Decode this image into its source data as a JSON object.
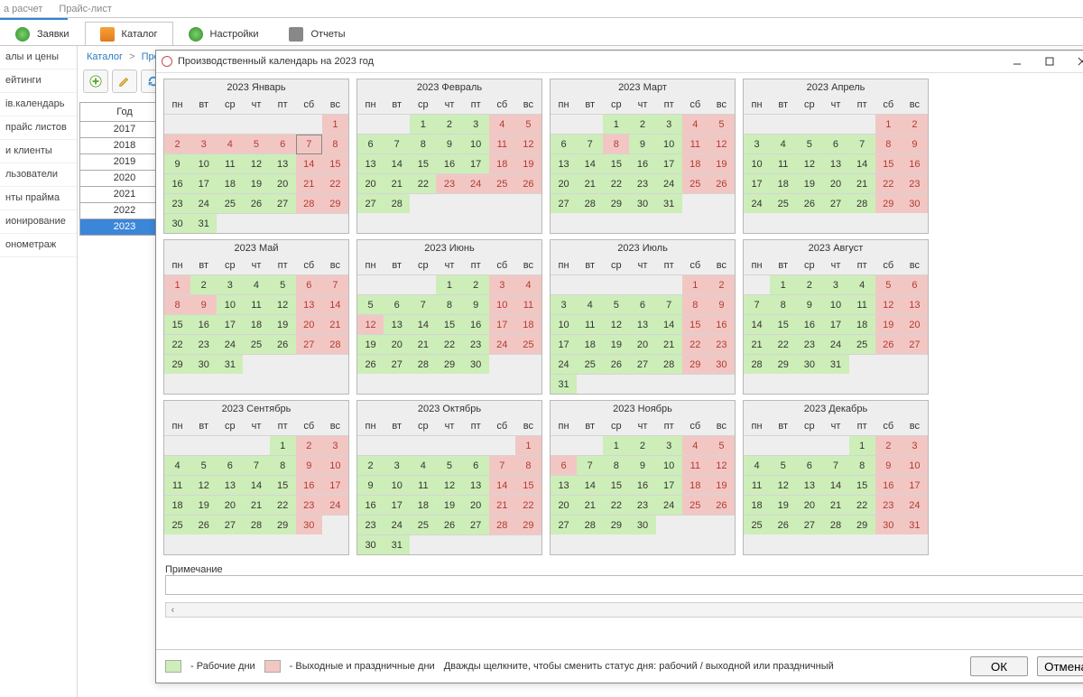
{
  "topTabs": [
    "а расчет",
    "Прайс-лист"
  ],
  "mainTabs": [
    {
      "icon": "request",
      "label": "Заявки"
    },
    {
      "icon": "catalog",
      "label": "Каталог"
    },
    {
      "icon": "settings",
      "label": "Настройки"
    },
    {
      "icon": "reports",
      "label": "Отчеты"
    }
  ],
  "activeMainTab": 1,
  "sidebar": [
    "алы и цены",
    "ейтинги",
    "ів.календарь",
    "прайс листов",
    "и клиенты",
    "льзователи",
    "нты прайма",
    "ионирование",
    "онометраж"
  ],
  "breadcrumb": [
    "Каталог",
    "Производственный календарь"
  ],
  "yearHeader": "Год",
  "years": [
    "2017",
    "2018",
    "2019",
    "2020",
    "2021",
    "2022",
    "2023"
  ],
  "selectedYear": "2023",
  "dialogTitle": "Производственный календарь на 2023 год",
  "dow": [
    "пн",
    "вт",
    "ср",
    "чт",
    "пт",
    "сб",
    "вс"
  ],
  "noteLabel": "Примечание",
  "legendWork": " - Рабочие дни",
  "legendHoliday": " - Выходные и праздничные дни",
  "hint": "Дважды щелкните, чтобы сменить статус дня: рабочий / выходной или праздничный",
  "okLabel": "ОК",
  "cancelLabel": "Отмена",
  "colors": {
    "work": "#cdeeb8",
    "holiday": "#f2c7c3",
    "grid": "#b9b9b9",
    "empty": "#eeeeee"
  },
  "today": {
    "month": 0,
    "day": 7
  },
  "months": [
    {
      "title": "2023 Январь",
      "startDow": 6,
      "days": 31,
      "holidays": [
        1,
        2,
        3,
        4,
        5,
        6,
        7,
        8,
        14,
        15,
        21,
        22,
        28,
        29
      ],
      "rows": 6
    },
    {
      "title": "2023 Февраль",
      "startDow": 2,
      "days": 28,
      "holidays": [
        4,
        5,
        11,
        12,
        18,
        19,
        23,
        24,
        25,
        26
      ],
      "rows": 6
    },
    {
      "title": "2023 Март",
      "startDow": 2,
      "days": 31,
      "holidays": [
        4,
        5,
        8,
        11,
        12,
        18,
        19,
        25,
        26
      ],
      "rows": 6
    },
    {
      "title": "2023 Апрель",
      "startDow": 5,
      "days": 30,
      "holidays": [
        1,
        2,
        8,
        9,
        15,
        16,
        22,
        23,
        29,
        30
      ],
      "rows": 6
    },
    {
      "title": "2023 Май",
      "startDow": 0,
      "days": 31,
      "holidays": [
        1,
        6,
        7,
        8,
        9,
        13,
        14,
        20,
        21,
        27,
        28
      ],
      "rows": 5
    },
    {
      "title": "2023 Июнь",
      "startDow": 3,
      "days": 30,
      "holidays": [
        3,
        4,
        10,
        11,
        12,
        17,
        18,
        24,
        25
      ],
      "rows": 5
    },
    {
      "title": "2023 Июль",
      "startDow": 5,
      "days": 31,
      "holidays": [
        1,
        2,
        8,
        9,
        15,
        16,
        22,
        23,
        29,
        30
      ],
      "rows": 6
    },
    {
      "title": "2023 Август",
      "startDow": 1,
      "days": 31,
      "holidays": [
        5,
        6,
        12,
        13,
        19,
        20,
        26,
        27
      ],
      "rows": 5
    },
    {
      "title": "2023 Сентябрь",
      "startDow": 4,
      "days": 30,
      "holidays": [
        2,
        3,
        9,
        10,
        16,
        17,
        23,
        24,
        30
      ],
      "rows": 5
    },
    {
      "title": "2023 Октябрь",
      "startDow": 6,
      "days": 31,
      "holidays": [
        1,
        7,
        8,
        14,
        15,
        21,
        22,
        28,
        29
      ],
      "rows": 6
    },
    {
      "title": "2023 Ноябрь",
      "startDow": 2,
      "days": 30,
      "holidays": [
        4,
        5,
        6,
        11,
        12,
        18,
        19,
        25,
        26
      ],
      "rows": 5
    },
    {
      "title": "2023 Декабрь",
      "startDow": 4,
      "days": 31,
      "holidays": [
        2,
        3,
        9,
        10,
        16,
        17,
        23,
        24,
        30,
        31
      ],
      "rows": 5
    }
  ]
}
